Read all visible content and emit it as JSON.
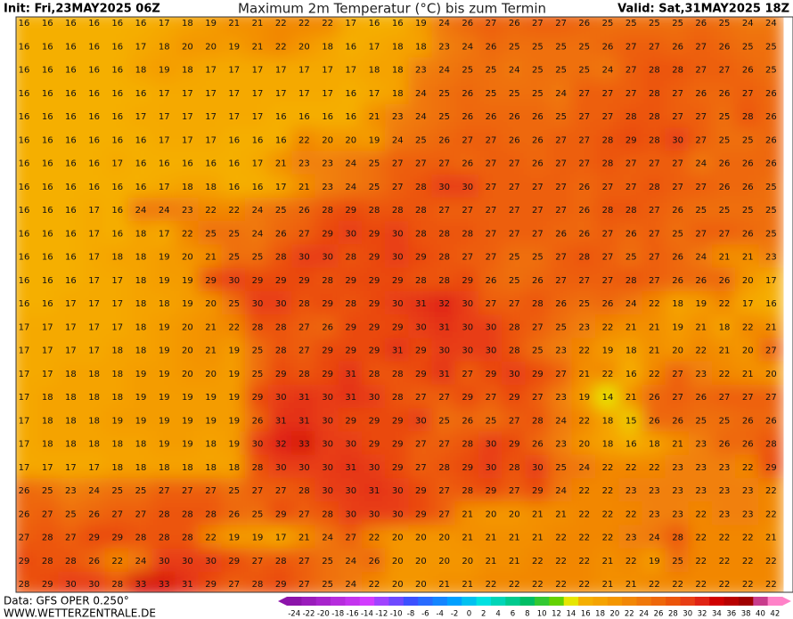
{
  "header": {
    "init": "Init: Fri,23MAY2025 06Z",
    "title": "Maximum 2m Temperatur (°C) bis zum Termin",
    "valid": "Valid: Sat,31MAY2025 18Z"
  },
  "map": {
    "rows": [
      [
        16,
        16,
        16,
        16,
        16,
        16,
        17,
        18,
        19,
        21,
        21,
        22,
        22,
        22,
        17,
        16,
        16,
        19,
        24,
        26,
        27,
        26,
        27,
        27,
        26,
        25,
        25,
        25,
        25,
        26,
        25,
        24,
        24
      ],
      [
        16,
        16,
        16,
        16,
        16,
        17,
        18,
        20,
        20,
        19,
        21,
        22,
        20,
        18,
        16,
        17,
        18,
        18,
        23,
        24,
        26,
        25,
        25,
        25,
        25,
        26,
        27,
        27,
        26,
        27,
        26,
        25,
        25
      ],
      [
        16,
        16,
        16,
        16,
        16,
        18,
        19,
        18,
        17,
        17,
        17,
        17,
        17,
        17,
        17,
        18,
        18,
        23,
        24,
        25,
        25,
        24,
        25,
        25,
        25,
        24,
        27,
        28,
        28,
        27,
        27,
        26,
        25
      ],
      [
        16,
        16,
        16,
        16,
        16,
        16,
        17,
        17,
        17,
        17,
        17,
        17,
        17,
        17,
        16,
        17,
        18,
        24,
        25,
        26,
        25,
        25,
        25,
        24,
        27,
        27,
        27,
        28,
        27,
        26,
        26,
        27,
        26
      ],
      [
        16,
        16,
        16,
        16,
        16,
        17,
        17,
        17,
        17,
        17,
        17,
        16,
        16,
        16,
        16,
        21,
        23,
        24,
        25,
        26,
        26,
        26,
        26,
        25,
        27,
        27,
        28,
        28,
        27,
        27,
        25,
        28,
        26
      ],
      [
        16,
        16,
        16,
        16,
        16,
        16,
        17,
        17,
        17,
        16,
        16,
        16,
        22,
        20,
        20,
        19,
        24,
        25,
        26,
        27,
        27,
        26,
        26,
        27,
        27,
        28,
        29,
        28,
        30,
        27,
        25,
        25,
        26
      ],
      [
        16,
        16,
        16,
        16,
        17,
        16,
        16,
        16,
        16,
        16,
        17,
        21,
        23,
        23,
        24,
        25,
        27,
        27,
        27,
        26,
        27,
        27,
        26,
        27,
        27,
        28,
        27,
        27,
        27,
        24,
        26,
        26,
        26
      ],
      [
        16,
        16,
        16,
        16,
        16,
        16,
        17,
        18,
        18,
        16,
        16,
        17,
        21,
        23,
        24,
        25,
        27,
        28,
        30,
        30,
        27,
        27,
        27,
        27,
        26,
        27,
        27,
        28,
        27,
        27,
        26,
        26,
        25
      ],
      [
        16,
        16,
        16,
        17,
        16,
        24,
        24,
        23,
        22,
        22,
        24,
        25,
        26,
        28,
        29,
        28,
        28,
        28,
        27,
        27,
        27,
        27,
        27,
        27,
        26,
        28,
        28,
        27,
        26,
        25,
        25,
        25,
        25
      ],
      [
        16,
        16,
        16,
        17,
        16,
        18,
        17,
        22,
        25,
        25,
        24,
        26,
        27,
        29,
        30,
        29,
        30,
        28,
        28,
        28,
        27,
        27,
        27,
        26,
        26,
        27,
        26,
        27,
        25,
        27,
        27,
        26,
        25
      ],
      [
        16,
        16,
        16,
        17,
        18,
        18,
        19,
        20,
        21,
        25,
        25,
        28,
        30,
        30,
        28,
        29,
        30,
        29,
        28,
        27,
        27,
        25,
        25,
        27,
        28,
        27,
        25,
        27,
        26,
        24,
        21,
        21,
        23
      ],
      [
        16,
        16,
        16,
        17,
        17,
        18,
        19,
        19,
        29,
        30,
        29,
        29,
        29,
        28,
        29,
        29,
        29,
        28,
        28,
        29,
        26,
        25,
        26,
        27,
        27,
        27,
        28,
        27,
        26,
        26,
        26,
        20,
        17
      ],
      [
        16,
        16,
        17,
        17,
        17,
        18,
        18,
        19,
        20,
        25,
        30,
        30,
        28,
        29,
        28,
        29,
        30,
        31,
        32,
        30,
        27,
        27,
        28,
        26,
        25,
        26,
        24,
        22,
        18,
        19,
        22,
        17,
        16
      ],
      [
        17,
        17,
        17,
        17,
        17,
        18,
        19,
        20,
        21,
        22,
        28,
        28,
        27,
        26,
        29,
        29,
        29,
        30,
        31,
        30,
        30,
        28,
        27,
        25,
        23,
        22,
        21,
        21,
        19,
        21,
        18,
        22,
        21
      ],
      [
        17,
        17,
        17,
        17,
        18,
        18,
        19,
        20,
        21,
        19,
        25,
        28,
        27,
        29,
        29,
        29,
        31,
        29,
        30,
        30,
        30,
        28,
        25,
        23,
        22,
        19,
        18,
        21,
        20,
        22,
        21,
        20,
        27
      ],
      [
        17,
        17,
        18,
        18,
        18,
        19,
        19,
        20,
        20,
        19,
        25,
        29,
        28,
        29,
        31,
        28,
        28,
        29,
        31,
        27,
        29,
        30,
        29,
        27,
        21,
        22,
        16,
        22,
        27,
        23,
        22,
        21,
        20
      ],
      [
        17,
        18,
        18,
        18,
        18,
        19,
        19,
        19,
        19,
        19,
        29,
        30,
        31,
        30,
        31,
        30,
        28,
        27,
        27,
        29,
        27,
        29,
        27,
        23,
        19,
        14,
        21,
        26,
        27,
        26,
        27,
        27,
        27
      ],
      [
        17,
        18,
        18,
        18,
        19,
        19,
        19,
        19,
        19,
        19,
        26,
        31,
        31,
        30,
        29,
        29,
        29,
        30,
        25,
        26,
        25,
        27,
        28,
        24,
        22,
        18,
        15,
        26,
        26,
        25,
        25,
        26,
        26
      ],
      [
        17,
        18,
        18,
        18,
        18,
        18,
        19,
        19,
        18,
        19,
        30,
        32,
        33,
        30,
        30,
        29,
        29,
        27,
        27,
        28,
        30,
        29,
        26,
        23,
        20,
        18,
        16,
        18,
        21,
        23,
        26,
        26,
        28
      ],
      [
        17,
        17,
        17,
        17,
        18,
        18,
        18,
        18,
        18,
        18,
        28,
        30,
        30,
        30,
        31,
        30,
        29,
        27,
        28,
        29,
        30,
        28,
        30,
        25,
        24,
        22,
        22,
        22,
        23,
        23,
        23,
        22,
        29
      ],
      [
        26,
        25,
        23,
        24,
        25,
        25,
        27,
        27,
        27,
        25,
        27,
        27,
        28,
        30,
        30,
        31,
        30,
        29,
        27,
        28,
        29,
        27,
        29,
        24,
        22,
        22,
        23,
        23,
        23,
        23,
        23,
        23,
        22
      ],
      [
        26,
        27,
        25,
        26,
        27,
        27,
        28,
        28,
        28,
        26,
        25,
        29,
        27,
        28,
        30,
        30,
        30,
        29,
        27,
        21,
        20,
        20,
        21,
        21,
        22,
        22,
        22,
        23,
        23,
        22,
        23,
        23,
        22
      ],
      [
        27,
        28,
        27,
        29,
        29,
        28,
        28,
        28,
        22,
        19,
        19,
        17,
        21,
        24,
        27,
        22,
        20,
        20,
        20,
        21,
        21,
        21,
        21,
        22,
        22,
        22,
        23,
        24,
        28,
        22,
        22,
        22,
        21
      ],
      [
        29,
        28,
        28,
        26,
        22,
        24,
        30,
        30,
        30,
        29,
        27,
        28,
        27,
        25,
        24,
        26,
        20,
        20,
        20,
        20,
        21,
        21,
        22,
        22,
        22,
        21,
        22,
        19,
        25,
        22,
        22,
        22,
        22
      ],
      [
        28,
        29,
        30,
        30,
        28,
        33,
        33,
        31,
        29,
        27,
        28,
        29,
        27,
        25,
        24,
        22,
        20,
        20,
        21,
        21,
        22,
        22,
        22,
        22,
        22,
        21,
        21,
        22,
        22,
        22,
        22,
        22,
        22
      ]
    ]
  },
  "colorbar": {
    "ticks": [
      -24,
      -22,
      -20,
      -18,
      -16,
      -14,
      -12,
      -10,
      -8,
      -6,
      -4,
      -2,
      0,
      2,
      4,
      6,
      8,
      10,
      12,
      14,
      16,
      18,
      20,
      22,
      24,
      26,
      28,
      30,
      32,
      34,
      36,
      38,
      40,
      42
    ]
  },
  "footer": {
    "data": "Data: GFS OPER 0.250°",
    "source": "WWW.WETTERZENTRALE.DE"
  }
}
